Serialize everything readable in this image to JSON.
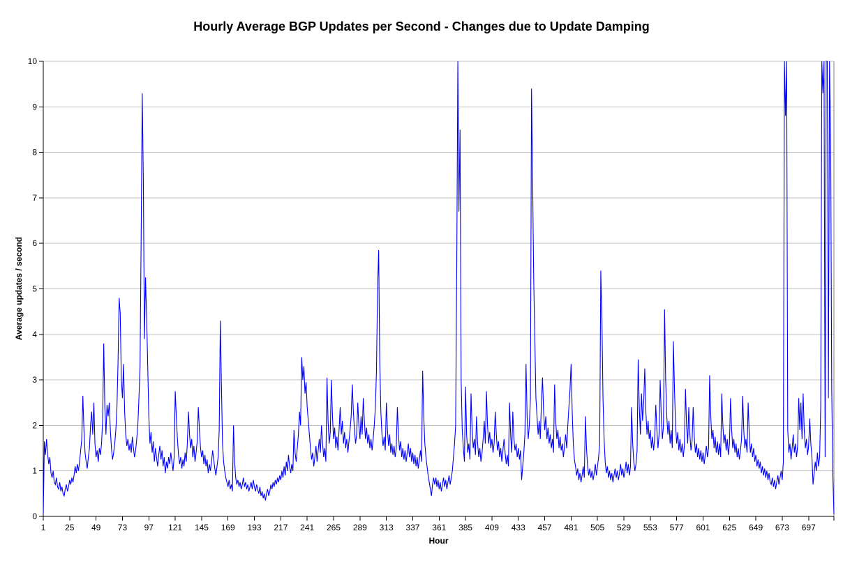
{
  "chart_data": {
    "type": "line",
    "title": "Hourly Average BGP Updates per Second - Changes due to Update Damping",
    "xlabel": "Hour",
    "ylabel": "Average updates / second",
    "ylim": [
      0,
      10
    ],
    "y_tick_step": 1,
    "x_start": 1,
    "x_tick_step": 24,
    "x_ticks": [
      1,
      25,
      49,
      73,
      97,
      121,
      145,
      169,
      193,
      217,
      241,
      265,
      289,
      313,
      337,
      361,
      385,
      409,
      433,
      457,
      481,
      505,
      529,
      553,
      577,
      601,
      625,
      649,
      673,
      697
    ],
    "grid": "horizontal-only",
    "legend": "none",
    "line_color": "#0000ff",
    "grid_color": "#c0c0c0",
    "axis_color": "#000000",
    "plot_border_color": "#808080",
    "values": [
      0.05,
      1.65,
      1.35,
      1.7,
      1.35,
      1.15,
      1.3,
      0.95,
      0.85,
      1.0,
      0.75,
      0.7,
      0.85,
      0.65,
      0.6,
      0.75,
      0.55,
      0.65,
      0.5,
      0.45,
      0.6,
      0.7,
      0.55,
      0.65,
      0.8,
      0.7,
      0.85,
      0.75,
      0.9,
      1.1,
      0.95,
      1.15,
      1.0,
      1.2,
      1.45,
      1.7,
      2.65,
      1.9,
      1.4,
      1.2,
      1.05,
      1.3,
      1.5,
      2.0,
      2.3,
      1.8,
      2.5,
      1.6,
      1.3,
      1.45,
      1.2,
      1.5,
      1.35,
      1.6,
      2.1,
      3.8,
      2.4,
      1.8,
      2.45,
      2.2,
      2.5,
      1.9,
      1.5,
      1.25,
      1.4,
      1.6,
      1.9,
      2.4,
      3.4,
      4.8,
      4.45,
      3.0,
      2.6,
      3.35,
      2.3,
      1.8,
      1.55,
      1.7,
      1.45,
      1.6,
      1.4,
      1.75,
      1.5,
      1.3,
      1.45,
      1.7,
      2.0,
      2.6,
      3.3,
      6.1,
      9.3,
      7.4,
      3.9,
      5.25,
      4.35,
      3.3,
      2.2,
      1.6,
      1.85,
      1.4,
      1.65,
      1.2,
      1.5,
      1.3,
      1.1,
      1.35,
      1.55,
      1.25,
      1.45,
      1.1,
      1.3,
      0.95,
      1.2,
      1.05,
      1.3,
      1.15,
      1.4,
      1.2,
      1.0,
      1.3,
      2.75,
      2.2,
      1.7,
      1.35,
      1.15,
      1.3,
      1.05,
      1.25,
      1.1,
      1.4,
      1.2,
      1.6,
      2.3,
      1.8,
      1.5,
      1.7,
      1.3,
      1.55,
      1.2,
      1.4,
      1.65,
      2.4,
      1.9,
      1.5,
      1.3,
      1.45,
      1.15,
      1.35,
      1.1,
      1.25,
      0.95,
      1.15,
      1.0,
      1.2,
      1.45,
      1.25,
      1.05,
      0.9,
      1.1,
      1.3,
      1.9,
      4.3,
      2.9,
      1.6,
      1.2,
      1.0,
      0.85,
      0.75,
      0.65,
      0.8,
      0.6,
      0.7,
      0.55,
      2.0,
      1.2,
      0.85,
      0.7,
      0.8,
      0.65,
      0.75,
      0.6,
      0.7,
      0.85,
      0.65,
      0.75,
      0.6,
      0.7,
      0.55,
      0.65,
      0.75,
      0.6,
      0.8,
      0.65,
      0.55,
      0.7,
      0.6,
      0.5,
      0.65,
      0.45,
      0.55,
      0.4,
      0.5,
      0.35,
      0.5,
      0.6,
      0.45,
      0.55,
      0.7,
      0.6,
      0.75,
      0.65,
      0.8,
      0.7,
      0.85,
      0.75,
      0.9,
      0.8,
      1.0,
      0.85,
      1.1,
      0.9,
      1.2,
      1.0,
      1.35,
      1.1,
      0.95,
      1.15,
      1.0,
      1.9,
      1.4,
      1.2,
      1.5,
      1.8,
      2.3,
      2.0,
      3.5,
      3.0,
      3.3,
      2.7,
      2.95,
      2.4,
      2.1,
      1.8,
      1.5,
      1.25,
      1.4,
      1.1,
      1.3,
      1.55,
      1.2,
      1.45,
      1.7,
      1.4,
      2.0,
      1.6,
      1.3,
      1.5,
      1.2,
      3.05,
      2.1,
      1.6,
      1.85,
      3.0,
      2.2,
      1.7,
      1.95,
      1.5,
      1.75,
      1.45,
      1.9,
      2.4,
      1.8,
      2.1,
      1.6,
      1.85,
      1.5,
      1.7,
      1.4,
      1.65,
      1.9,
      2.2,
      2.9,
      2.3,
      1.9,
      1.6,
      1.8,
      2.5,
      2.0,
      1.7,
      2.2,
      1.8,
      2.6,
      2.1,
      1.7,
      1.95,
      1.6,
      1.8,
      1.5,
      1.7,
      1.45,
      1.7,
      2.0,
      2.4,
      3.2,
      5.0,
      5.85,
      3.4,
      2.3,
      1.8,
      1.55,
      1.75,
      1.45,
      2.5,
      1.9,
      1.55,
      1.8,
      1.4,
      1.6,
      1.35,
      1.55,
      1.3,
      1.5,
      2.4,
      1.8,
      1.45,
      1.65,
      1.3,
      1.5,
      1.25,
      1.45,
      1.2,
      1.4,
      1.6,
      1.3,
      1.5,
      1.2,
      1.4,
      1.15,
      1.35,
      1.1,
      1.3,
      1.05,
      1.25,
      1.45,
      1.2,
      3.2,
      2.2,
      1.6,
      1.3,
      1.1,
      0.9,
      0.75,
      0.6,
      0.45,
      0.7,
      0.85,
      0.7,
      0.85,
      0.65,
      0.8,
      0.6,
      0.75,
      0.55,
      0.7,
      0.85,
      0.65,
      0.8,
      0.6,
      0.75,
      0.9,
      0.7,
      0.85,
      1.0,
      1.3,
      1.6,
      2.0,
      5.5,
      10,
      6.7,
      8.5,
      3.0,
      1.9,
      1.5,
      1.2,
      2.85,
      1.8,
      1.4,
      1.6,
      1.25,
      2.7,
      1.9,
      1.5,
      1.7,
      1.35,
      2.2,
      1.6,
      1.3,
      1.5,
      1.2,
      1.4,
      1.7,
      2.1,
      1.6,
      2.75,
      2.0,
      1.6,
      1.85,
      1.5,
      1.7,
      1.4,
      1.6,
      2.3,
      1.8,
      1.45,
      1.65,
      1.3,
      1.5,
      1.2,
      1.45,
      1.7,
      1.4,
      1.15,
      1.35,
      1.1,
      2.5,
      1.8,
      1.4,
      2.3,
      1.7,
      1.45,
      1.6,
      1.3,
      1.5,
      1.25,
      1.45,
      0.8,
      1.1,
      1.4,
      1.8,
      3.35,
      2.2,
      1.7,
      2.0,
      2.6,
      9.4,
      7.35,
      5.2,
      3.9,
      2.6,
      2.2,
      1.8,
      2.1,
      1.7,
      2.5,
      3.05,
      2.3,
      1.9,
      2.2,
      1.7,
      1.95,
      1.6,
      1.8,
      1.5,
      1.7,
      1.4,
      2.9,
      2.1,
      1.7,
      1.9,
      1.5,
      1.75,
      1.45,
      1.6,
      1.3,
      1.55,
      1.8,
      1.5,
      2.0,
      2.4,
      2.8,
      3.35,
      2.3,
      1.6,
      1.25,
      1.1,
      0.9,
      1.05,
      0.8,
      0.95,
      0.75,
      0.9,
      1.1,
      0.85,
      2.2,
      1.5,
      1.1,
      0.9,
      1.05,
      0.85,
      1.0,
      0.8,
      0.95,
      1.15,
      0.9,
      1.1,
      1.3,
      1.6,
      5.4,
      4.35,
      2.6,
      1.7,
      1.2,
      0.95,
      1.1,
      0.85,
      1.0,
      0.8,
      0.95,
      0.75,
      0.9,
      1.05,
      0.85,
      1.0,
      0.8,
      0.95,
      1.15,
      0.9,
      1.05,
      0.85,
      1.0,
      1.2,
      0.95,
      1.15,
      0.9,
      1.1,
      2.4,
      1.6,
      1.2,
      1.0,
      1.15,
      1.45,
      3.45,
      2.4,
      1.8,
      2.7,
      2.1,
      2.5,
      3.25,
      2.3,
      1.8,
      2.1,
      1.7,
      1.9,
      1.5,
      1.75,
      1.45,
      1.7,
      2.45,
      1.9,
      1.5,
      1.8,
      3.0,
      2.2,
      1.7,
      2.0,
      4.55,
      3.0,
      2.2,
      1.8,
      2.1,
      1.6,
      1.9,
      1.5,
      3.85,
      2.8,
      2.0,
      1.6,
      1.85,
      1.45,
      1.7,
      1.4,
      1.6,
      1.3,
      1.55,
      2.8,
      2.0,
      1.6,
      2.4,
      1.8,
      1.45,
      1.65,
      2.4,
      1.75,
      1.4,
      1.6,
      1.3,
      1.5,
      1.25,
      1.45,
      1.2,
      1.4,
      1.15,
      1.35,
      1.55,
      1.3,
      1.5,
      3.1,
      2.2,
      1.7,
      1.9,
      1.5,
      1.75,
      1.4,
      1.65,
      1.35,
      1.6,
      1.3,
      2.7,
      2.0,
      1.6,
      1.8,
      1.45,
      1.7,
      1.35,
      1.6,
      2.6,
      1.9,
      1.5,
      1.7,
      1.4,
      1.6,
      1.3,
      1.5,
      1.25,
      1.45,
      1.7,
      2.65,
      1.9,
      1.5,
      1.7,
      1.4,
      2.5,
      1.8,
      1.4,
      1.6,
      1.3,
      1.5,
      1.2,
      1.35,
      1.1,
      1.25,
      1.05,
      1.2,
      0.95,
      1.1,
      0.9,
      1.05,
      0.85,
      1.0,
      0.8,
      0.95,
      0.75,
      0.7,
      0.85,
      0.65,
      0.8,
      0.6,
      0.75,
      0.9,
      0.7,
      0.85,
      1.0,
      0.8,
      1.2,
      10,
      8.8,
      10,
      1.9,
      1.4,
      1.6,
      1.25,
      1.5,
      1.8,
      1.4,
      1.6,
      1.3,
      1.55,
      2.6,
      1.9,
      2.5,
      1.7,
      2.7,
      1.9,
      1.5,
      1.7,
      1.35,
      1.55,
      2.15,
      1.6,
      1.3,
      0.7,
      0.95,
      1.2,
      1.0,
      1.4,
      1.1,
      1.3,
      2.4,
      10,
      9.3,
      10,
      1.3,
      10,
      10,
      2.6,
      10,
      8.4,
      2.8,
      0.9,
      0.05
    ]
  }
}
